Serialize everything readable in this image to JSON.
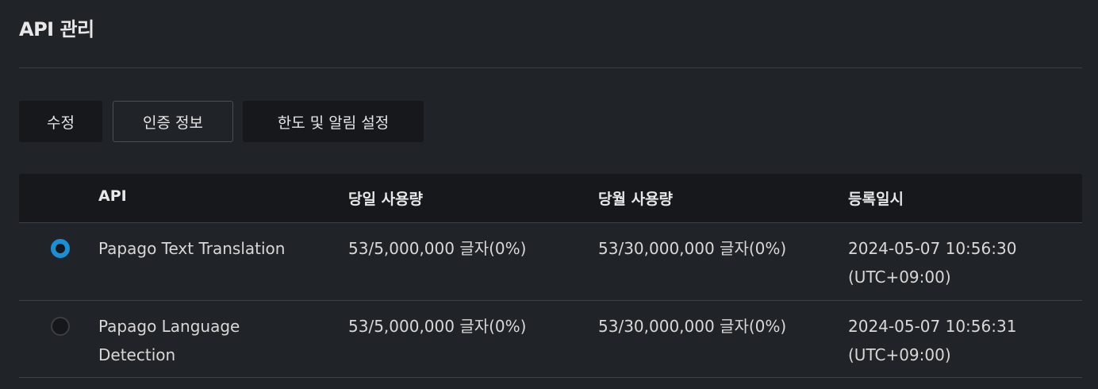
{
  "page": {
    "title": "API 관리"
  },
  "toolbar": {
    "edit_label": "수정",
    "auth_label": "인증 정보",
    "limit_label": "한도 및 알림 설정"
  },
  "table": {
    "headers": {
      "api": "API",
      "daily": "당일 사용량",
      "monthly": "당월 사용량",
      "registered": "등록일시"
    },
    "rows": [
      {
        "selected": true,
        "api": "Papago Text Translation",
        "daily": "53/5,000,000 글자(0%)",
        "monthly": "53/30,000,000 글자(0%)",
        "registered": "2024-05-07 10:56:30 (UTC+09:00)"
      },
      {
        "selected": false,
        "api": "Papago Language Detection",
        "daily": "53/5,000,000 글자(0%)",
        "monthly": "53/30,000,000 글자(0%)",
        "registered": "2024-05-07 10:56:31 (UTC+09:00)"
      }
    ]
  },
  "colors": {
    "background": "#202327",
    "accent": "#1b8fd6"
  }
}
